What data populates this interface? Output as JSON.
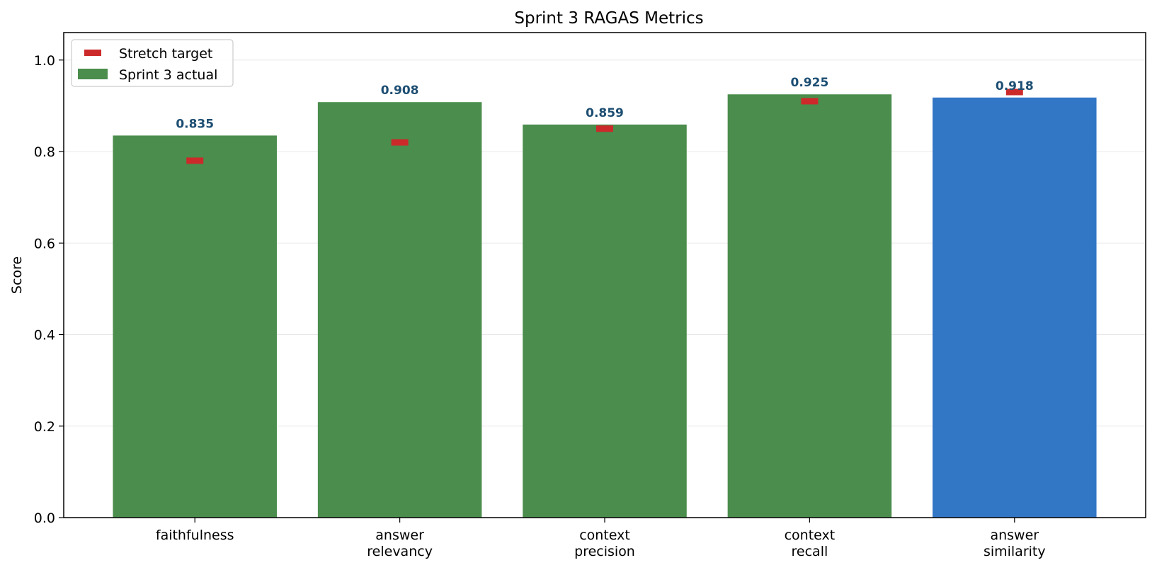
{
  "chart_data": {
    "type": "bar",
    "title": "Sprint 3 RAGAS Metrics",
    "xlabel": "",
    "ylabel": "Score",
    "ylim": [
      0,
      1.06
    ],
    "yticks": [
      "0.0",
      "0.2",
      "0.4",
      "0.6",
      "0.8",
      "1.0"
    ],
    "categories": [
      [
        "faithfulness"
      ],
      [
        "answer",
        "relevancy"
      ],
      [
        "context",
        "precision"
      ],
      [
        "context",
        "recall"
      ],
      [
        "answer",
        "similarity"
      ]
    ],
    "values": [
      0.835,
      0.908,
      0.859,
      0.925,
      0.918
    ],
    "value_labels": [
      "0.835",
      "0.908",
      "0.859",
      "0.925",
      "0.918"
    ],
    "targets": [
      0.78,
      0.82,
      0.85,
      0.91,
      0.93
    ],
    "bar_colors": [
      "#4a8d4c",
      "#4a8d4c",
      "#4a8d4c",
      "#4a8d4c",
      "#3277c5"
    ],
    "target_color": "#cc2a2a",
    "value_label_color": "#1d4e72",
    "grid": true,
    "grid_axis": "y",
    "legend": {
      "placement": "top-left",
      "entries": [
        {
          "label": "Stretch target",
          "color": "#cc2a2a",
          "marker": "dash"
        },
        {
          "label": "Sprint 3 actual",
          "color": "#4a8d4c",
          "marker": "patch"
        }
      ]
    }
  }
}
